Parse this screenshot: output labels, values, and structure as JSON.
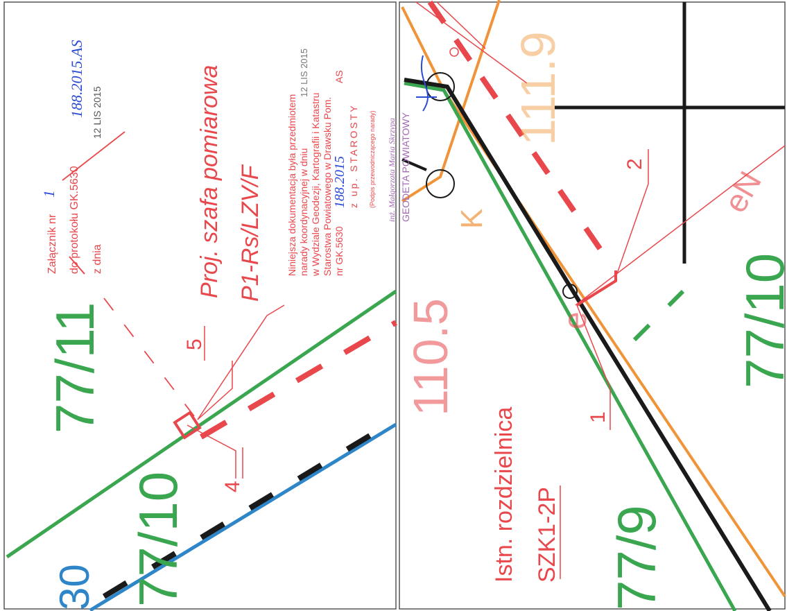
{
  "parcels": {
    "p77_11": "77/11",
    "p77_10": "77/10",
    "p77_9": "77/9",
    "p77_10b": "77/10",
    "p30": "30"
  },
  "points": {
    "p1": "1",
    "p2": "2",
    "p4": "4",
    "p5": "5"
  },
  "labels": {
    "proj_title": "Proj. szafa pomiarowa",
    "proj_code": "P1-Rs/LZV/F",
    "istn_title": "Istn. rozdzielnica",
    "istn_code": "SZK1-2P",
    "heights": {
      "h1": "110.5",
      "h2": "111.9"
    },
    "letter_k": "K",
    "letter_e": "e",
    "letter_eN": "eN"
  },
  "stamp_attachment": {
    "zalacznik": "Załącznik nr",
    "zalacznik_val": "1",
    "protokol": "do protokołu GK.5630",
    "protokol_val": "188.2015.AS",
    "z_dnia": "z dnia",
    "z_dnia_val": "12 LIS 2015"
  },
  "stamp_notice": {
    "l1": "Niniejsza dokumentacja była przedmiotem",
    "l2": "narady koordynacyjnej w dniu",
    "l2_date": "12 LIS 2015",
    "l3": "w Wydziale Geodezji, Kartografii i Katastru",
    "l4": "Starostwa Powiatowego w Drawsku Pom.",
    "l5": "nr GK.5630",
    "l5_val": "188.2015",
    "l5_suffix": "AS",
    "l6": "z up. STAROSTY",
    "l7": "(Podpis przewodniczącego narady)"
  },
  "stamp_surveyor": {
    "name": "inż. Małgorzata Maria Skrzypa",
    "title": "GEODETA POWIATOWY"
  },
  "colors": {
    "green": "#3aa64f",
    "red": "#e8474c",
    "orange": "#f0943a",
    "blue": "#2e86c9",
    "black": "#1a1a1a",
    "ink_blue": "#2a4bd7",
    "stamp_purple": "#a46ab5"
  }
}
